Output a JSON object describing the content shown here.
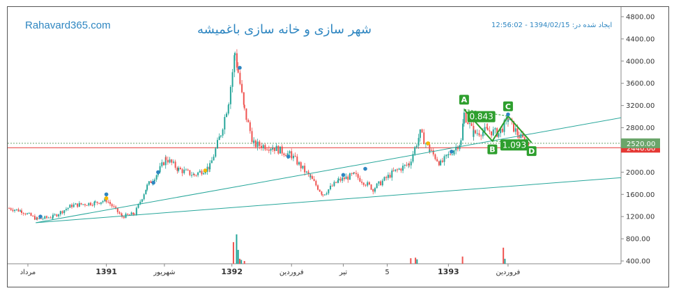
{
  "header": {
    "site": "Rahavard365.com",
    "title": "شهر سازی و خانه سازی باغمیشه",
    "created": "ایجاد شده در: 1394/02/15 - 12:56:02"
  },
  "colors": {
    "up": "#26a69a",
    "down": "#ef5350",
    "trend": "#26a69a",
    "pattern": "#2e9f2e",
    "support": "#e53935",
    "current": "#6aa56a",
    "text": "#2e86c1"
  },
  "chart_data": {
    "type": "candlestick",
    "ylim": [
      350,
      4900
    ],
    "yticks": [
      400,
      800,
      1200,
      1600,
      2000,
      2400,
      2800,
      3200,
      3600,
      4000,
      4400,
      4800
    ],
    "ytick_labels": [
      "400.00",
      "800.00",
      "1200.00",
      "1600.00",
      "2000.00",
      "2400.00",
      "2800.00",
      "3200.00",
      "3600.00",
      "4000.00",
      "4400.00",
      "4800.00"
    ],
    "price_path": [
      [
        0,
        1350
      ],
      [
        8,
        1300
      ],
      [
        18,
        1150
      ],
      [
        28,
        1200
      ],
      [
        40,
        1400
      ],
      [
        55,
        1450
      ],
      [
        62,
        1500
      ],
      [
        72,
        1200
      ],
      [
        80,
        1250
      ],
      [
        88,
        1750
      ],
      [
        95,
        2000
      ],
      [
        100,
        2250
      ],
      [
        108,
        2050
      ],
      [
        118,
        1950
      ],
      [
        128,
        2100
      ],
      [
        135,
        2700
      ],
      [
        140,
        3300
      ],
      [
        144,
        4150
      ],
      [
        146,
        3800
      ],
      [
        150,
        3100
      ],
      [
        156,
        2500
      ],
      [
        168,
        2450
      ],
      [
        180,
        2300
      ],
      [
        192,
        1900
      ],
      [
        200,
        1600
      ],
      [
        210,
        1850
      ],
      [
        220,
        1950
      ],
      [
        232,
        1700
      ],
      [
        245,
        2000
      ],
      [
        255,
        2150
      ],
      [
        262,
        2700
      ],
      [
        268,
        2400
      ],
      [
        275,
        2150
      ],
      [
        280,
        2300
      ],
      [
        288,
        2550
      ],
      [
        290,
        3050
      ],
      [
        296,
        2700
      ],
      [
        305,
        2750
      ],
      [
        312,
        2700
      ],
      [
        318,
        2950
      ],
      [
        325,
        2650
      ],
      [
        332,
        2480
      ]
    ],
    "x_labels": [
      {
        "text": "مرداد",
        "pos": 12,
        "bold": false
      },
      {
        "text": "1391",
        "pos": 62,
        "bold": true
      },
      {
        "text": "شهریور",
        "pos": 99,
        "bold": false
      },
      {
        "text": "1392",
        "pos": 142,
        "bold": true
      },
      {
        "text": "فروردین",
        "pos": 180,
        "bold": false
      },
      {
        "text": "تیر",
        "pos": 213,
        "bold": false
      },
      {
        "text": "5",
        "pos": 241,
        "bold": false
      },
      {
        "text": "1393",
        "pos": 280,
        "bold": true
      },
      {
        "text": "فروردین",
        "pos": 318,
        "bold": false
      }
    ],
    "x_range": [
      0,
      390
    ],
    "trendlines": [
      {
        "name": "upper",
        "x1": 17,
        "y1": 1090,
        "x2": 390,
        "y2": 2980
      },
      {
        "name": "lower",
        "x1": 17,
        "y1": 1090,
        "x2": 390,
        "y2": 1900
      }
    ],
    "support_level": 2440,
    "current_level": 2520,
    "support_label": "2440.00",
    "current_label": "2520.00",
    "pattern": {
      "points": [
        {
          "label": "A",
          "x": 290,
          "y": 3130
        },
        {
          "label": "B",
          "x": 308,
          "y": 2560
        },
        {
          "label": "C",
          "x": 318,
          "y": 3010
        },
        {
          "label": "D",
          "x": 333,
          "y": 2530
        }
      ],
      "ratios": [
        {
          "text": "0.843",
          "x": 301,
          "y": 3000
        },
        {
          "text": "1.093",
          "x": 322,
          "y": 2490
        }
      ]
    },
    "markers": [
      {
        "x": 20,
        "y": 1200,
        "color": "#2e86c1"
      },
      {
        "x": 62,
        "y": 1600,
        "color": "#2e86c1"
      },
      {
        "x": 62,
        "y": 1530,
        "color": "#f5b800"
      },
      {
        "x": 92,
        "y": 1810,
        "color": "#2e86c1"
      },
      {
        "x": 95,
        "y": 2000,
        "color": "#2e86c1"
      },
      {
        "x": 125,
        "y": 2030,
        "color": "#f5b800"
      },
      {
        "x": 147,
        "y": 3880,
        "color": "#2e86c1"
      },
      {
        "x": 178,
        "y": 2280,
        "color": "#2e86c1"
      },
      {
        "x": 213,
        "y": 1950,
        "color": "#2e86c1"
      },
      {
        "x": 227,
        "y": 2060,
        "color": "#2e86c1"
      },
      {
        "x": 267,
        "y": 2520,
        "color": "#f5b800"
      },
      {
        "x": 282,
        "y": 2370,
        "color": "#2e86c1"
      },
      {
        "x": 318,
        "y": 3040,
        "color": "#2e86c1"
      }
    ],
    "volume_base": 380,
    "volume_bars": [
      {
        "x": 143,
        "h": 740,
        "color": "#ef5350"
      },
      {
        "x": 145,
        "h": 880,
        "color": "#26a69a"
      },
      {
        "x": 146,
        "h": 600,
        "color": "#26a69a"
      },
      {
        "x": 147,
        "h": 440,
        "color": "#ef5350"
      },
      {
        "x": 148,
        "h": 420,
        "color": "#26a69a"
      },
      {
        "x": 150,
        "h": 400,
        "color": "#ef5350"
      },
      {
        "x": 256,
        "h": 450,
        "color": "#ef5350"
      },
      {
        "x": 259,
        "h": 460,
        "color": "#ef5350"
      },
      {
        "x": 260,
        "h": 430,
        "color": "#26a69a"
      },
      {
        "x": 289,
        "h": 480,
        "color": "#ef5350"
      },
      {
        "x": 315,
        "h": 640,
        "color": "#ef5350"
      },
      {
        "x": 316,
        "h": 440,
        "color": "#26a69a"
      }
    ]
  }
}
